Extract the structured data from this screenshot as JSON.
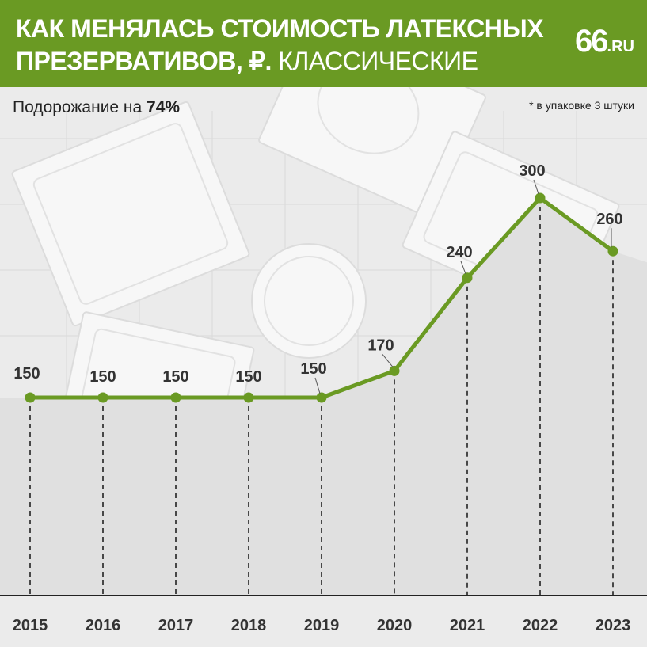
{
  "header": {
    "title_line1": "КАК МЕНЯЛАСЬ СТОИМОСТЬ ЛАТЕКСНЫХ",
    "title_line2_bold": "ПРЕЗЕРВАТИВОВ, ₽.",
    "title_line2_regular": " КЛАССИЧЕСКИЕ",
    "logo_number": "66",
    "logo_suffix": ".RU"
  },
  "subtitle": {
    "prefix": "Подорожание на ",
    "value": "74%"
  },
  "note": "* в упаковке 3 штуки",
  "colors": {
    "header_bg": "#6a9a23",
    "line": "#6a9a23",
    "background": "#ebebeb",
    "area_fill": "#e0e0e0",
    "text": "#333333"
  },
  "chart_data": {
    "type": "line",
    "x": [
      "2015",
      "2016",
      "2017",
      "2018",
      "2019",
      "2020",
      "2021",
      "2022",
      "2023"
    ],
    "values": [
      150,
      150,
      150,
      150,
      150,
      170,
      240,
      300,
      260
    ],
    "data_labels": [
      "150",
      "150",
      "150",
      "150",
      "150",
      "170",
      "240",
      "300",
      "260"
    ],
    "grid": true,
    "unit": "₽"
  }
}
